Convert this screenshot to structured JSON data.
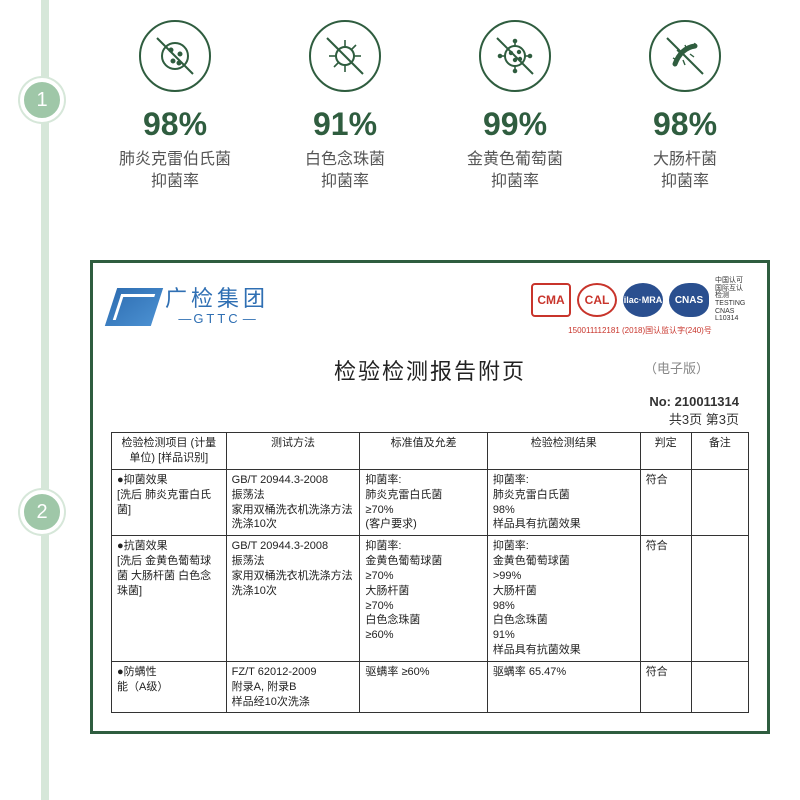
{
  "colors": {
    "brand_green": "#2f5d3f",
    "timeline_bg": "#d6e7d9",
    "node_bg": "#9fc7a8",
    "logo_blue": "#2f6fb3",
    "cert_red": "#c8342b",
    "cert_blue": "#2a4f8f"
  },
  "timeline": {
    "node1": "1",
    "node2": "2"
  },
  "stats": [
    {
      "pct": "98%",
      "label": "肺炎克雷伯氏菌\n抑菌率"
    },
    {
      "pct": "91%",
      "label": "白色念珠菌\n抑菌率"
    },
    {
      "pct": "99%",
      "label": "金黄色葡萄菌\n抑菌率"
    },
    {
      "pct": "98%",
      "label": "大肠杆菌\n抑菌率"
    }
  ],
  "report": {
    "logo_cn": "广检集团",
    "logo_en": "GTTC",
    "cert_cma": "CMA",
    "cert_cal": "CAL",
    "cert_ilac": "ilac·MRA",
    "cert_cnas": "CNAS",
    "cert_sub": "150011112181   (2018)国认监认字(240)号",
    "cert_side": "中国认可 国际互认 检测 TESTING CNAS L10314",
    "title": "检验检测报告附页",
    "title_note": "（电子版）",
    "no_label": "No:",
    "no_value": "210011314",
    "page_info": "共3页  第3页",
    "headers": {
      "item": "检验检测项目\n(计量单位)\n[样品识别]",
      "method": "测试方法",
      "std": "标准值及允差",
      "result": "检验检测结果",
      "judge": "判定",
      "note": "备注"
    },
    "rows": [
      {
        "item": "●抑菌效果\n[洗后  肺炎克雷白氏菌]",
        "method": "GB/T 20944.3-2008\n振荡法\n家用双桶洗衣机洗涤方法\n洗涤10次",
        "std": "抑菌率:\n肺炎克雷白氏菌\n≥70%\n(客户要求)",
        "result": "抑菌率:\n肺炎克雷白氏菌\n98%\n样品具有抗菌效果",
        "judge": "符合",
        "note": ""
      },
      {
        "item": "●抗菌效果\n[洗后  金黄色葡萄球菌  大肠杆菌  白色念珠菌]",
        "method": "GB/T 20944.3-2008\n振荡法\n家用双桶洗衣机洗涤方法\n洗涤10次",
        "std": "抑菌率:\n金黄色葡萄球菌\n≥70%\n大肠杆菌\n≥70%\n白色念珠菌\n≥60%",
        "result": "抑菌率:\n金黄色葡萄球菌\n>99%\n大肠杆菌\n98%\n白色念珠菌\n91%\n样品具有抗菌效果",
        "judge": "符合",
        "note": ""
      },
      {
        "item": "●防螨性\n能（A级）",
        "method": "FZ/T 62012-2009\n附录A, 附录B\n样品经10次洗涤",
        "std": "驱螨率  ≥60%",
        "result": "驱螨率 65.47%",
        "judge": "符合",
        "note": ""
      }
    ]
  }
}
